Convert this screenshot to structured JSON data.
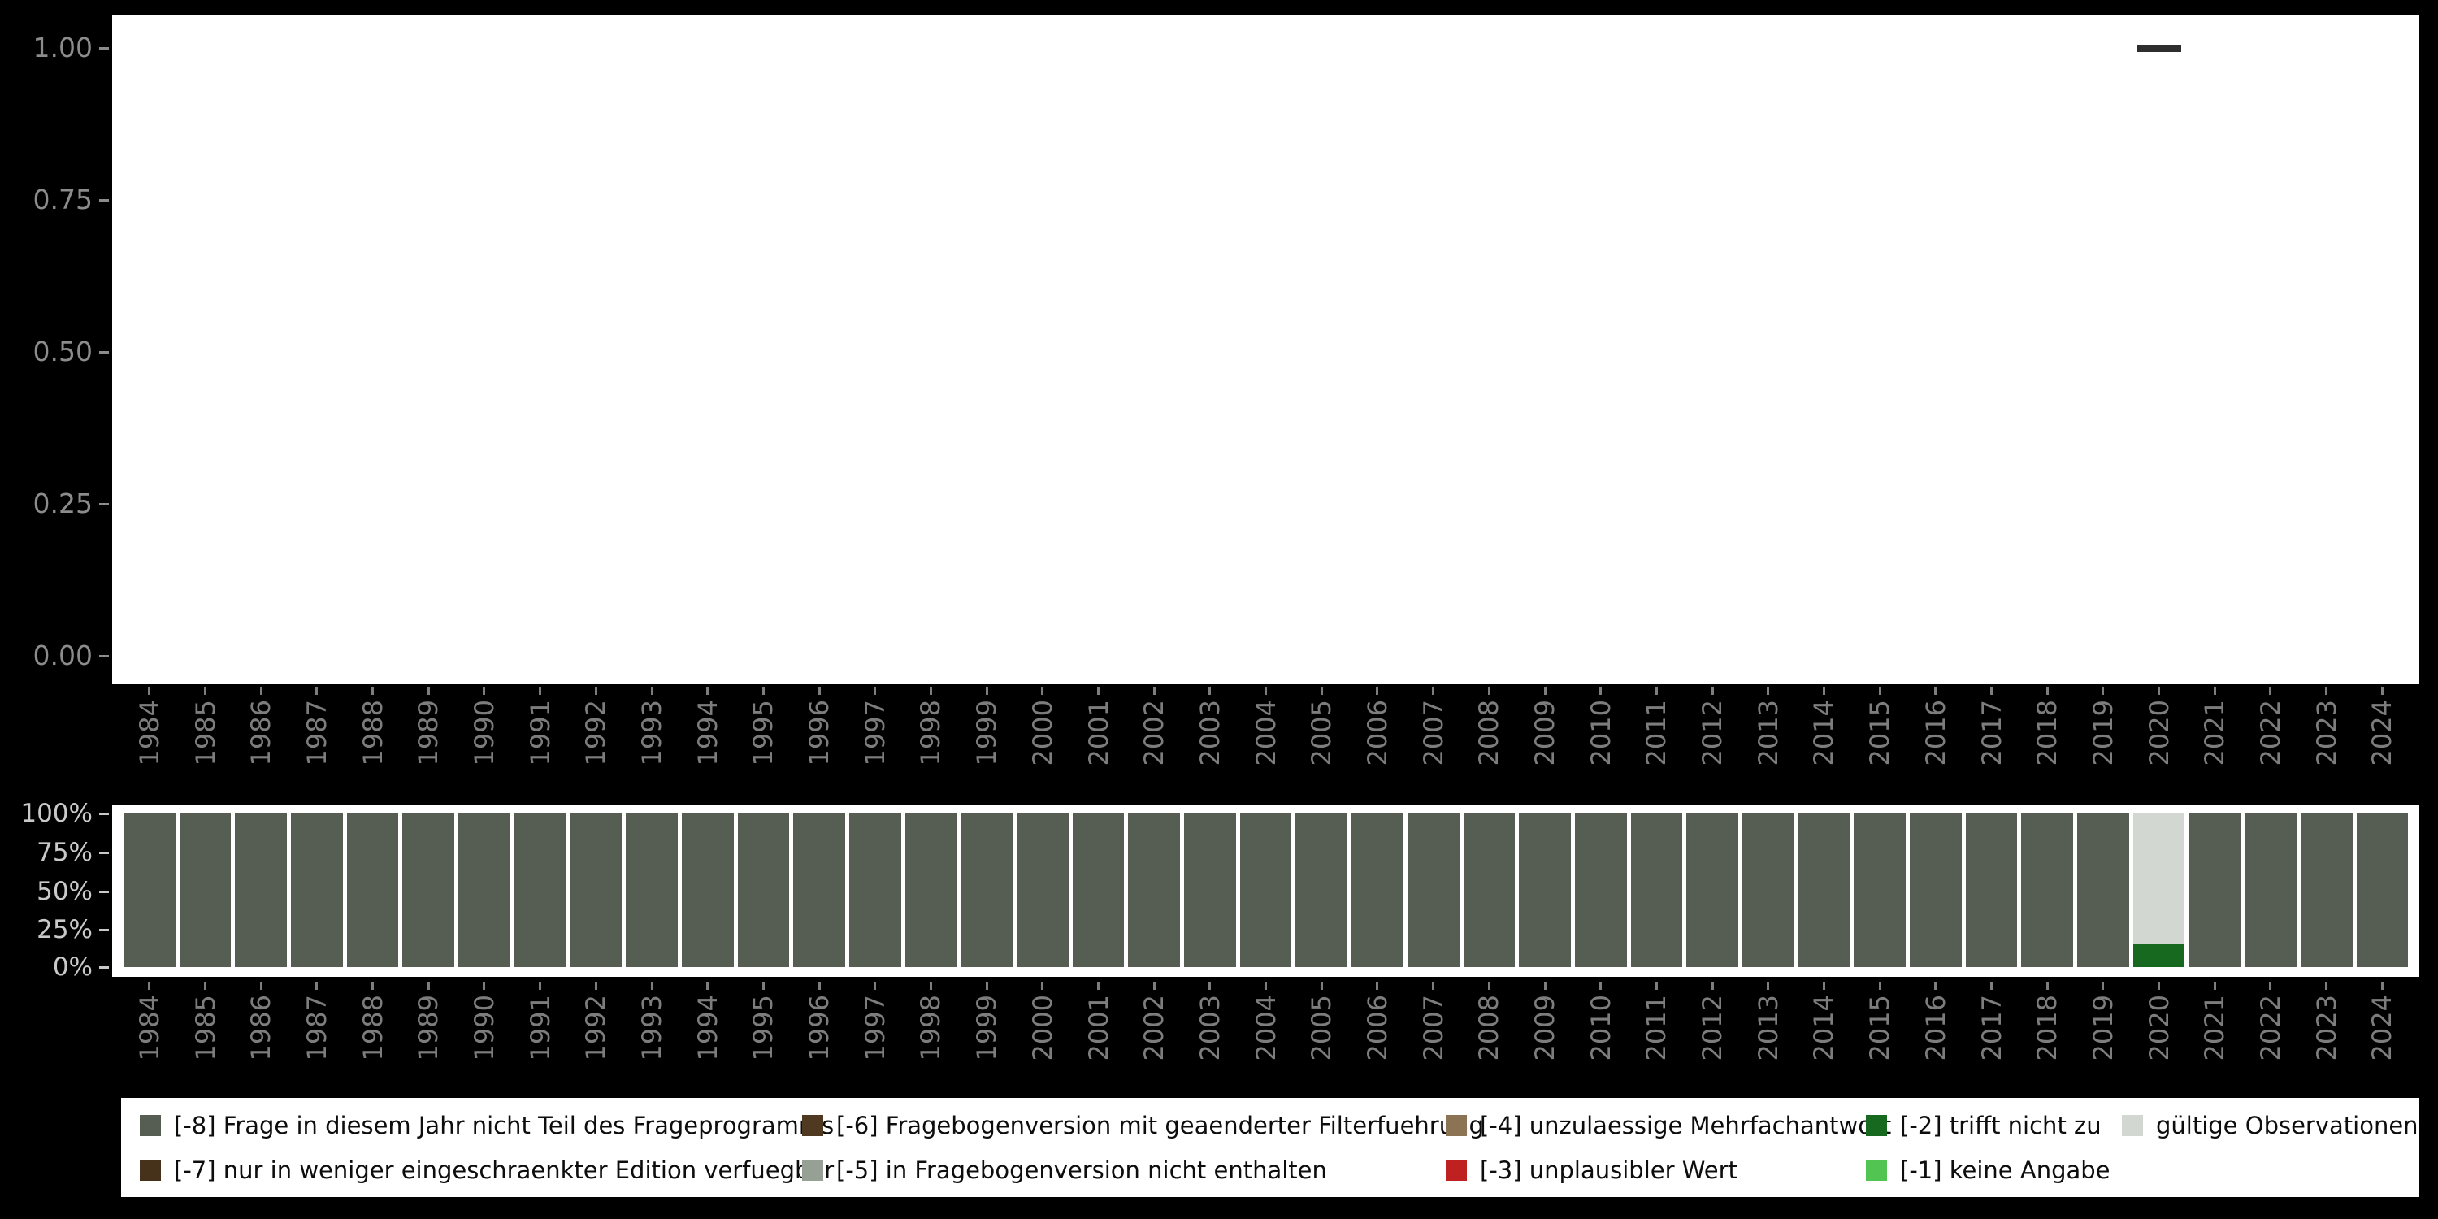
{
  "palette": {
    "m8": "#565e54",
    "m7": "#46321b",
    "m6": "#4f3a21",
    "m5": "#97a095",
    "m4": "#8b7354",
    "m3": "#bf2121",
    "m2": "#17691f",
    "m1": "#52c452",
    "valid": "#d3d7d2"
  },
  "legend": {
    "items": [
      {
        "color_key": "m8",
        "label": "[-8] Frage in diesem Jahr nicht Teil des Frageprogramms"
      },
      {
        "color_key": "m6",
        "label": "[-6] Fragebogenversion mit geaenderter Filterfuehrung"
      },
      {
        "color_key": "m4",
        "label": "[-4] unzulaessige Mehrfachantwort"
      },
      {
        "color_key": "m2",
        "label": "[-2] trifft nicht zu"
      },
      {
        "color_key": "valid",
        "label": "gültige Observationen"
      },
      {
        "color_key": "m7",
        "label": "[-7] nur in weniger eingeschraenkter Edition verfuegbar"
      },
      {
        "color_key": "m5",
        "label": "[-5] in Fragebogenversion nicht enthalten"
      },
      {
        "color_key": "m3",
        "label": "[-3] unplausibler Wert"
      },
      {
        "color_key": "m1",
        "label": "[-1] keine Angabe"
      }
    ]
  },
  "chart_data": [
    {
      "type": "scatter",
      "marker": "dash",
      "marker_color": "#2e2e2e",
      "points": [
        {
          "x": 2020,
          "y": 1.0
        }
      ],
      "ylim": [
        0,
        1
      ],
      "yticks": [
        "1.00",
        "0.75",
        "0.50",
        "0.25",
        "0.00"
      ],
      "x_range": [
        1984,
        2024
      ],
      "grid": false,
      "title": "",
      "xlabel": "",
      "ylabel": ""
    },
    {
      "type": "bar",
      "stacked": true,
      "unit": "percent",
      "ylim": [
        0,
        100
      ],
      "yticks": [
        "100%",
        "75%",
        "50%",
        "25%",
        "0%"
      ],
      "categories": [
        1984,
        1985,
        1986,
        1987,
        1988,
        1989,
        1990,
        1991,
        1992,
        1993,
        1994,
        1995,
        1996,
        1997,
        1998,
        1999,
        2000,
        2001,
        2002,
        2003,
        2004,
        2005,
        2006,
        2007,
        2008,
        2009,
        2010,
        2011,
        2012,
        2013,
        2014,
        2015,
        2016,
        2017,
        2018,
        2019,
        2020,
        2021,
        2022,
        2023,
        2024
      ],
      "series": [
        {
          "name": "[-8] Frage in diesem Jahr nicht Teil des Frageprogramms",
          "color_key": "m8",
          "values": [
            100,
            100,
            100,
            100,
            100,
            100,
            100,
            100,
            100,
            100,
            100,
            100,
            100,
            100,
            100,
            100,
            100,
            100,
            100,
            100,
            100,
            100,
            100,
            100,
            100,
            100,
            100,
            100,
            100,
            100,
            100,
            100,
            100,
            100,
            100,
            100,
            0,
            100,
            100,
            100,
            100
          ]
        },
        {
          "name": "[-2] trifft nicht zu",
          "color_key": "m2",
          "values": [
            0,
            0,
            0,
            0,
            0,
            0,
            0,
            0,
            0,
            0,
            0,
            0,
            0,
            0,
            0,
            0,
            0,
            0,
            0,
            0,
            0,
            0,
            0,
            0,
            0,
            0,
            0,
            0,
            0,
            0,
            0,
            0,
            0,
            0,
            0,
            0,
            15,
            0,
            0,
            0,
            0
          ]
        },
        {
          "name": "gültige Observationen",
          "color_key": "valid",
          "values": [
            0,
            0,
            0,
            0,
            0,
            0,
            0,
            0,
            0,
            0,
            0,
            0,
            0,
            0,
            0,
            0,
            0,
            0,
            0,
            0,
            0,
            0,
            0,
            0,
            0,
            0,
            0,
            0,
            0,
            0,
            0,
            0,
            0,
            0,
            0,
            0,
            85,
            0,
            0,
            0,
            0
          ]
        }
      ],
      "title": "",
      "xlabel": "",
      "ylabel": ""
    }
  ]
}
